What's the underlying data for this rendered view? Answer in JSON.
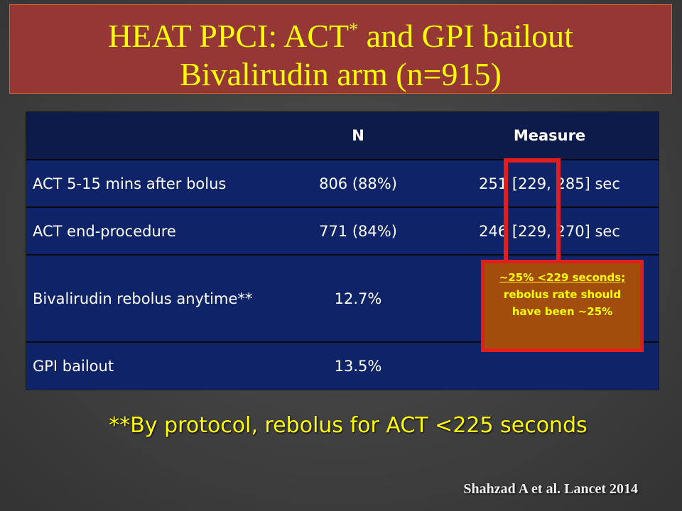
{
  "slide": {
    "title_line1": "HEAT PPCI: ACT",
    "title_sup": "*",
    "title_line1_end": " and GPI bailout",
    "title_line2": "Bivalirudin arm (n=915)"
  },
  "table": {
    "headers": [
      "",
      "N",
      "Measure"
    ],
    "rows": [
      [
        "ACT 5-15 mins after bolus",
        "806 (88%)",
        "251 [229, 285] sec"
      ],
      [
        "ACT end-procedure",
        "771 (84%)",
        "246 [229, 270] sec"
      ],
      [
        "Bivalirudin rebolus anytime**",
        "12.7%",
        ""
      ],
      [
        "GPI bailout",
        "13.5%",
        ""
      ]
    ]
  },
  "callout": {
    "line1": "~25% <229 seconds;",
    "line2": "rebolus rate should",
    "line3": "have been ~25%",
    "border_color": "#e31c1c",
    "fill_color": "#a24d0c"
  },
  "footnote": "**By protocol, rebolus for ACT <225 seconds",
  "citation": "Shahzad A et al. Lancet 2014",
  "colors": {
    "title_bg": "#953735",
    "title_text": "#ffff00",
    "table_header_bg": "#0d1b4a",
    "table_body_bg": "#0f2468"
  }
}
